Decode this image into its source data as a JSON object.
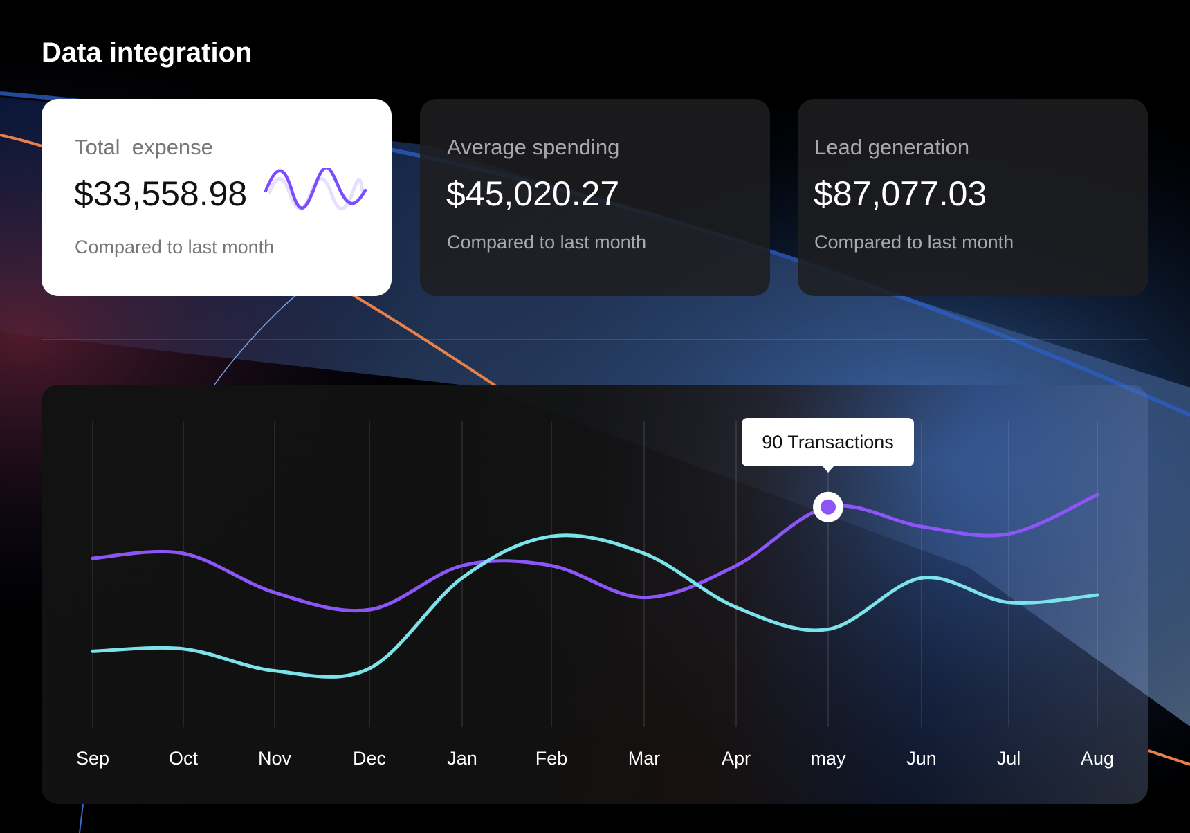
{
  "header": {
    "title": "Data integration"
  },
  "cards": [
    {
      "label": "Total  expense",
      "value": "$33,558.98",
      "compare": "Compared to last month",
      "sparkline_color": "#7c4dff"
    },
    {
      "label": "Average spending",
      "value": "$45,020.27",
      "compare": "Compared to last month"
    },
    {
      "label": "Lead generation",
      "value": "$87,077.03",
      "compare": "Compared to last month"
    }
  ],
  "chart_data": {
    "type": "line",
    "categories": [
      "Sep",
      "Oct",
      "Nov",
      "Dec",
      "Jan",
      "Feb",
      "Mar",
      "Apr",
      "may",
      "Jun",
      "Jul",
      "Aug"
    ],
    "series": [
      {
        "color": "#8b55f7",
        "values": [
          69,
          71,
          55,
          48,
          66,
          66,
          53,
          66,
          90,
          82,
          79,
          95
        ]
      },
      {
        "color": "#7de3ea",
        "values": [
          31,
          32,
          23,
          24,
          61,
          78,
          71,
          49,
          40,
          61,
          51,
          54
        ]
      }
    ],
    "ylim": [
      0,
      125
    ],
    "grid": "vertical",
    "highlight": {
      "category": "may",
      "series": 0,
      "label": "90 Transactions"
    },
    "title": "",
    "xlabel": "",
    "ylabel": ""
  }
}
